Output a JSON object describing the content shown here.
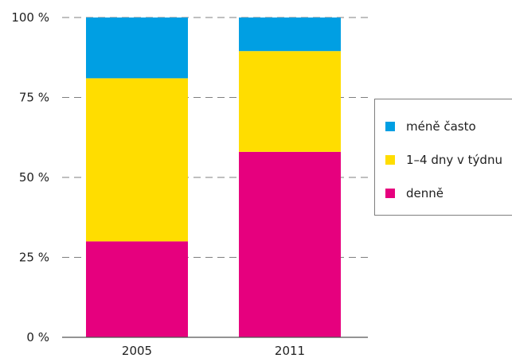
{
  "chart_data": {
    "type": "bar",
    "stacked": true,
    "categories": [
      "2005",
      "2011"
    ],
    "series": [
      {
        "name": "denně",
        "values": [
          30,
          58
        ],
        "color": "#e6007e"
      },
      {
        "name": "1–4 dny v týdnu",
        "values": [
          51,
          31.5
        ],
        "color": "#ffdd00"
      },
      {
        "name": "méně často",
        "values": [
          19,
          10.5
        ],
        "color": "#009fe3"
      }
    ],
    "ylim": [
      0,
      100
    ],
    "yticks": [
      0,
      25,
      50,
      75,
      100
    ],
    "ytick_labels": [
      "0 %",
      "25 %",
      "50 %",
      "75 %",
      "100 %"
    ],
    "grid": true,
    "legend_position": "right",
    "legend_order": [
      "méně často",
      "1–4 dny v týdnu",
      "denně"
    ],
    "title": "",
    "xlabel": "",
    "ylabel": ""
  }
}
